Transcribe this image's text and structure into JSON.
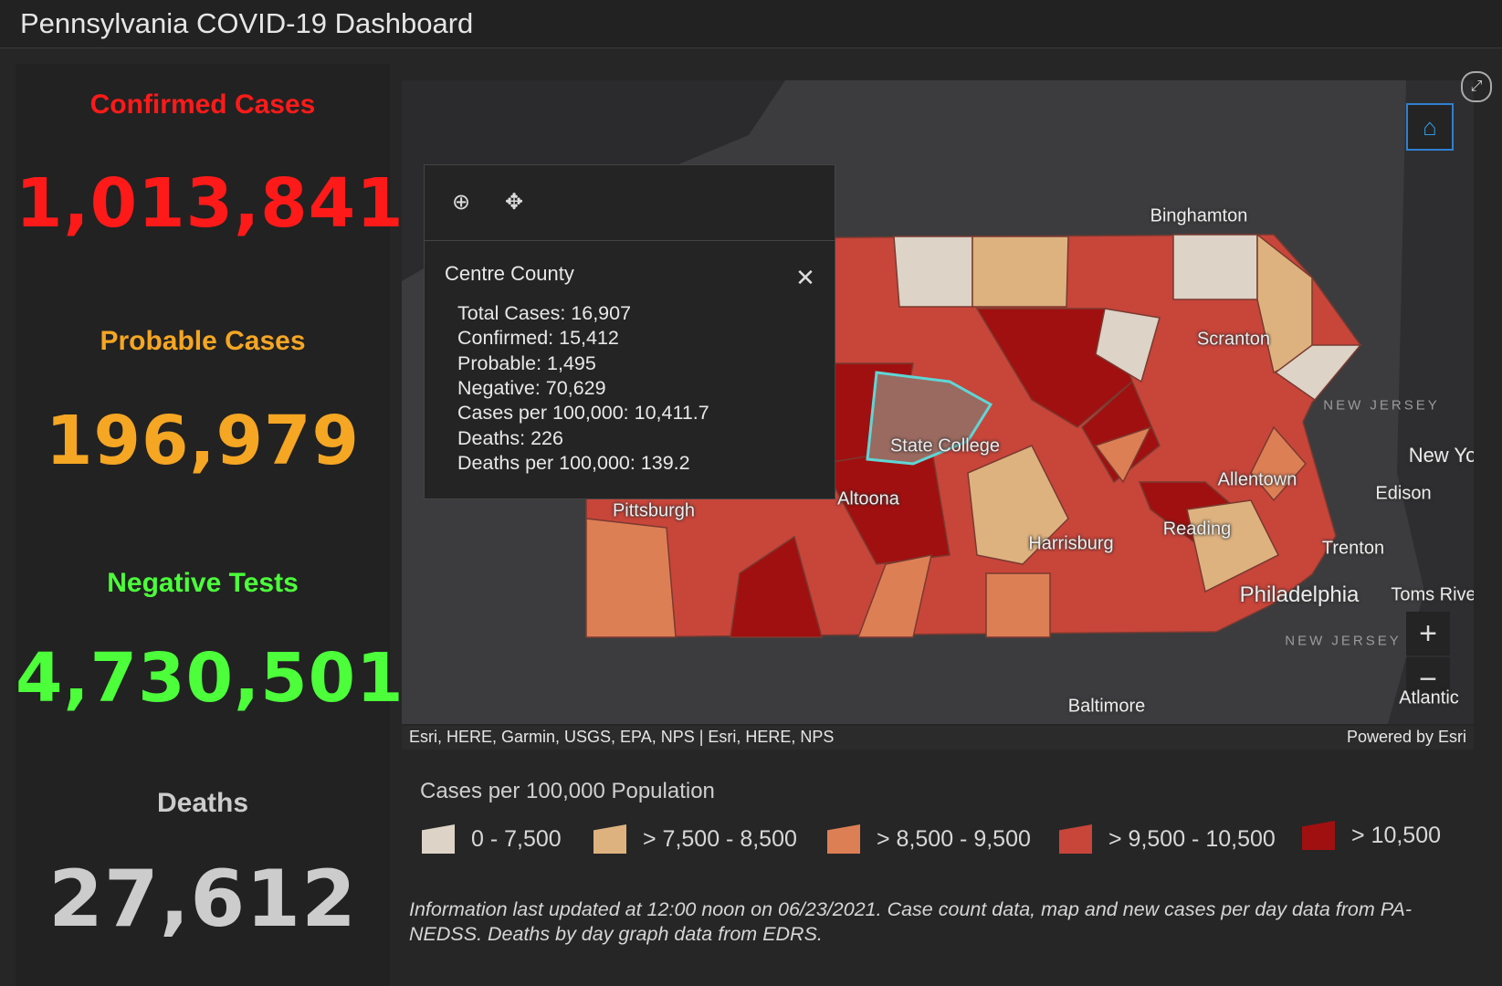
{
  "header": {
    "title": "Pennsylvania COVID-19 Dashboard"
  },
  "stats": [
    {
      "label": "Confirmed Cases",
      "value": "1,013,841"
    },
    {
      "label": "Probable Cases",
      "value": "196,979"
    },
    {
      "label": "Negative Tests",
      "value": "4,730,501"
    },
    {
      "label": "Deaths",
      "value": "27,612"
    }
  ],
  "map": {
    "labels": [
      "Binghamton",
      "Scranton",
      "State College",
      "Altoona",
      "Pittsburgh",
      "Harrisburg",
      "Allentown",
      "Reading",
      "Trenton",
      "Philadelphia",
      "Edison",
      "Baltimore",
      "Toms Rive",
      "Atlantic",
      "New Yo"
    ],
    "region_labels": [
      "NEW JERSEY",
      "NEW JERSEY"
    ],
    "attribution": "Esri, HERE, Garmin, USGS, EPA, NPS | Esri, HERE, NPS",
    "powered_by": "Powered by Esri"
  },
  "popup": {
    "title": "Centre County",
    "lines": [
      "Total Cases: 16,907",
      "Confirmed: 15,412",
      "Probable: 1,495",
      "Negative: 70,629",
      "Cases per 100,000: 10,411.7",
      "Deaths: 226",
      "Deaths per 100,000: 139.2"
    ]
  },
  "legend": {
    "title": "Cases per 100,000 Population",
    "items": [
      "0 - 7,500",
      "> 7,500 - 8,500",
      "> 8,500 - 9,500",
      "> 9,500 - 10,500",
      "> 10,500"
    ]
  },
  "note": "Information last updated at 12:00 noon on 06/23/2021. Case count data, map and new cases per day data from PA-NEDSS.  Deaths by day graph data from EDRS."
}
